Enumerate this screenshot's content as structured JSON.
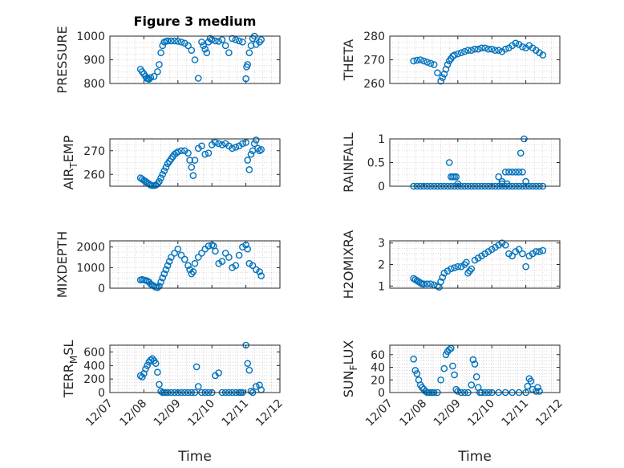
{
  "figure_title": "Figure 3 medium",
  "colors": {
    "marker": "#0072BD",
    "axes": "#262626",
    "grid": "#bdbdbd"
  },
  "chart_data": [
    {
      "type": "scatter",
      "title": "Figure 3 medium",
      "ylabel": "PRESSURE",
      "xlabel": "",
      "ylim": [
        800,
        1000
      ],
      "yticks": [
        800,
        900,
        1000
      ],
      "ytick_labels": [
        "800",
        "900",
        "1000"
      ],
      "xlim": [
        0,
        5
      ],
      "xticks": [
        0,
        1,
        2,
        3,
        4,
        5
      ],
      "xtick_labels": [],
      "grid": true,
      "series": [
        {
          "x": [
            0.9,
            0.95,
            1.0,
            1.05,
            1.08,
            1.12,
            1.15,
            1.2,
            1.3,
            1.4,
            1.45,
            1.5,
            1.55,
            1.6,
            1.65,
            1.7,
            1.8,
            1.9,
            2.0,
            2.1,
            2.2,
            2.3,
            2.4,
            2.5,
            2.6,
            2.7,
            2.75,
            2.8,
            2.85,
            2.9,
            2.95,
            3.0,
            3.1,
            3.2,
            3.3,
            3.4,
            3.5,
            3.6,
            3.7,
            3.8,
            3.9,
            4.0,
            4.02,
            4.05,
            4.1,
            4.15,
            4.2,
            4.25,
            4.3,
            4.4,
            4.45
          ],
          "y": [
            860,
            850,
            840,
            830,
            822,
            820,
            818,
            825,
            830,
            850,
            880,
            930,
            960,
            975,
            978,
            980,
            980,
            980,
            978,
            975,
            970,
            960,
            940,
            900,
            822,
            975,
            960,
            945,
            930,
            975,
            990,
            985,
            980,
            978,
            985,
            960,
            930,
            990,
            985,
            980,
            975,
            820,
            870,
            880,
            930,
            960,
            990,
            1000,
            965,
            975,
            985
          ]
        }
      ]
    },
    {
      "type": "scatter",
      "title": "",
      "ylabel": "THETA",
      "xlabel": "",
      "ylim": [
        260,
        280
      ],
      "yticks": [
        260,
        270,
        280
      ],
      "ytick_labels": [
        "260",
        "270",
        "280"
      ],
      "xlim": [
        0,
        5
      ],
      "xticks": [
        0,
        1,
        2,
        3,
        4,
        5
      ],
      "xtick_labels": [],
      "grid": true,
      "series": [
        {
          "x": [
            0.7,
            0.8,
            0.9,
            1.0,
            1.1,
            1.2,
            1.3,
            1.4,
            1.5,
            1.55,
            1.6,
            1.65,
            1.7,
            1.75,
            1.8,
            1.85,
            1.9,
            2.0,
            2.1,
            2.2,
            2.3,
            2.4,
            2.5,
            2.6,
            2.7,
            2.8,
            2.9,
            3.0,
            3.1,
            3.2,
            3.3,
            3.4,
            3.5,
            3.6,
            3.7,
            3.8,
            3.9,
            4.0,
            4.1,
            4.2,
            4.3,
            4.4,
            4.5
          ],
          "y": [
            269.5,
            269.8,
            270.0,
            269.5,
            269.0,
            268.5,
            268.0,
            264.5,
            261.0,
            262.5,
            264.0,
            266.0,
            268.0,
            269.5,
            270.5,
            271.5,
            272.0,
            272.5,
            273.0,
            273.5,
            274.0,
            274.0,
            274.5,
            274.5,
            275.0,
            275.0,
            274.5,
            274.5,
            274.0,
            274.0,
            273.5,
            274.5,
            275.0,
            276.0,
            277.0,
            276.5,
            275.5,
            275.0,
            276.0,
            275.0,
            274.0,
            273.0,
            272.0
          ]
        }
      ]
    },
    {
      "type": "scatter",
      "title": "",
      "ylabel": "AIR_TEMP",
      "xlabel": "",
      "ylim": [
        255,
        275
      ],
      "yticks": [
        260,
        270
      ],
      "ytick_labels": [
        "260",
        "270"
      ],
      "xlim": [
        0,
        5
      ],
      "xticks": [
        0,
        1,
        2,
        3,
        4,
        5
      ],
      "xtick_labels": [],
      "grid": true,
      "series": [
        {
          "x": [
            0.9,
            0.95,
            1.0,
            1.05,
            1.1,
            1.15,
            1.2,
            1.25,
            1.3,
            1.35,
            1.4,
            1.45,
            1.5,
            1.55,
            1.6,
            1.65,
            1.7,
            1.75,
            1.8,
            1.85,
            1.9,
            1.95,
            2.0,
            2.1,
            2.2,
            2.3,
            2.35,
            2.4,
            2.45,
            2.5,
            2.6,
            2.7,
            2.8,
            2.9,
            3.0,
            3.1,
            3.2,
            3.3,
            3.4,
            3.5,
            3.6,
            3.7,
            3.8,
            3.9,
            4.0,
            4.05,
            4.1,
            4.15,
            4.2,
            4.25,
            4.3,
            4.35,
            4.4,
            4.45
          ],
          "y": [
            258.5,
            258.0,
            257.5,
            257.0,
            256.5,
            256.0,
            255.5,
            255.3,
            255.3,
            255.5,
            256.0,
            257.0,
            258.5,
            260.0,
            261.5,
            263.0,
            264.5,
            265.5,
            266.5,
            267.5,
            268.5,
            269.0,
            269.5,
            270.0,
            270.0,
            269.0,
            266.0,
            263.0,
            259.5,
            266.0,
            271.0,
            272.0,
            268.5,
            269.0,
            272.5,
            273.5,
            273.0,
            272.5,
            273.0,
            272.0,
            271.0,
            271.5,
            272.0,
            273.0,
            273.5,
            266.0,
            262.0,
            268.5,
            270.0,
            273.0,
            274.5,
            271.0,
            270.0,
            270.5
          ]
        }
      ]
    },
    {
      "type": "scatter",
      "title": "",
      "ylabel": "RAINFALL",
      "xlabel": "",
      "ylim": [
        0,
        1
      ],
      "yticks": [
        0,
        0.5,
        1
      ],
      "ytick_labels": [
        "0",
        "0.5",
        "1"
      ],
      "xlim": [
        0,
        5
      ],
      "xticks": [
        0,
        1,
        2,
        3,
        4,
        5
      ],
      "xtick_labels": [],
      "grid": true,
      "series": [
        {
          "x": [
            0.7,
            0.8,
            0.9,
            1.0,
            1.1,
            1.2,
            1.3,
            1.4,
            1.5,
            1.6,
            1.7,
            1.8,
            1.9,
            2.0,
            2.1,
            2.2,
            2.3,
            2.4,
            2.5,
            2.6,
            2.7,
            2.8,
            2.9,
            3.0,
            3.1,
            3.2,
            3.3,
            3.4,
            3.5,
            3.6,
            3.7,
            3.8,
            3.9,
            4.0,
            4.1,
            4.2,
            4.3,
            4.4,
            4.5,
            1.75,
            1.8,
            1.85,
            1.9,
            1.95,
            2.0,
            3.2,
            3.3,
            3.4,
            3.5,
            3.6,
            3.7,
            3.8,
            3.9,
            3.85,
            3.95,
            3.3,
            3.45,
            4.0
          ],
          "y": [
            0,
            0,
            0,
            0,
            0,
            0,
            0,
            0,
            0,
            0,
            0,
            0,
            0,
            0,
            0,
            0,
            0,
            0,
            0,
            0,
            0,
            0,
            0,
            0,
            0,
            0,
            0,
            0,
            0,
            0,
            0,
            0,
            0,
            0,
            0,
            0,
            0,
            0,
            0,
            0.5,
            0.2,
            0.2,
            0.2,
            0.2,
            0.05,
            0.2,
            0.1,
            0.3,
            0.3,
            0.3,
            0.3,
            0.3,
            0.3,
            0.7,
            1.0,
            0.05,
            0.05,
            0.1
          ]
        }
      ]
    },
    {
      "type": "scatter",
      "title": "",
      "ylabel": "MIXDEPTH",
      "xlabel": "",
      "ylim": [
        0,
        2300
      ],
      "yticks": [
        0,
        1000,
        2000
      ],
      "ytick_labels": [
        "0",
        "1000",
        "2000"
      ],
      "xlim": [
        0,
        5
      ],
      "xticks": [
        0,
        1,
        2,
        3,
        4,
        5
      ],
      "xtick_labels": [],
      "grid": true,
      "series": [
        {
          "x": [
            0.9,
            0.95,
            1.0,
            1.05,
            1.1,
            1.15,
            1.2,
            1.25,
            1.3,
            1.35,
            1.4,
            1.45,
            1.5,
            1.55,
            1.6,
            1.65,
            1.7,
            1.75,
            1.8,
            1.9,
            2.0,
            2.1,
            2.2,
            2.3,
            2.35,
            2.4,
            2.45,
            2.5,
            2.6,
            2.7,
            2.8,
            2.9,
            3.0,
            3.05,
            3.1,
            3.2,
            3.3,
            3.4,
            3.5,
            3.6,
            3.7,
            3.8,
            3.9,
            4.0,
            4.05,
            4.1,
            4.2,
            4.3,
            4.4,
            4.45
          ],
          "y": [
            400,
            420,
            400,
            380,
            350,
            300,
            200,
            150,
            100,
            50,
            30,
            100,
            300,
            500,
            700,
            900,
            1100,
            1300,
            1500,
            1700,
            1900,
            1600,
            1400,
            1100,
            900,
            700,
            800,
            1200,
            1500,
            1700,
            1900,
            2050,
            2100,
            2050,
            1800,
            1200,
            1300,
            1700,
            1500,
            1000,
            1100,
            1600,
            2000,
            2100,
            1900,
            1200,
            1100,
            900,
            800,
            600
          ]
        }
      ]
    },
    {
      "type": "scatter",
      "title": "",
      "ylabel": "H2OMIXRA",
      "xlabel": "",
      "ylim": [
        0.9,
        3.1
      ],
      "yticks": [
        1,
        2,
        3
      ],
      "ytick_labels": [
        "1",
        "2",
        "3"
      ],
      "xlim": [
        0,
        5
      ],
      "xticks": [
        0,
        1,
        2,
        3,
        4,
        5
      ],
      "xtick_labels": [],
      "grid": true,
      "series": [
        {
          "x": [
            0.7,
            0.75,
            0.8,
            0.85,
            0.9,
            0.95,
            1.0,
            1.1,
            1.2,
            1.3,
            1.4,
            1.45,
            1.5,
            1.55,
            1.6,
            1.7,
            1.8,
            1.9,
            2.0,
            2.1,
            2.2,
            2.25,
            2.3,
            2.35,
            2.4,
            2.5,
            2.6,
            2.7,
            2.8,
            2.9,
            3.0,
            3.1,
            3.2,
            3.3,
            3.4,
            3.5,
            3.6,
            3.7,
            3.8,
            3.9,
            4.0,
            4.1,
            4.2,
            4.3,
            4.4,
            4.5
          ],
          "y": [
            1.35,
            1.3,
            1.25,
            1.2,
            1.15,
            1.1,
            1.1,
            1.1,
            1.1,
            1.05,
            1.0,
            0.95,
            1.2,
            1.4,
            1.6,
            1.7,
            1.8,
            1.85,
            1.9,
            1.9,
            2.0,
            2.1,
            1.6,
            1.7,
            1.8,
            2.2,
            2.3,
            2.4,
            2.5,
            2.6,
            2.7,
            2.8,
            2.9,
            3.0,
            2.9,
            2.5,
            2.4,
            2.6,
            2.7,
            2.5,
            1.9,
            2.4,
            2.5,
            2.6,
            2.6,
            2.65
          ]
        }
      ]
    },
    {
      "type": "scatter",
      "title": "",
      "ylabel": "TERR_MSL",
      "xlabel": "Time",
      "ylim": [
        0,
        700
      ],
      "yticks": [
        0,
        200,
        400,
        600
      ],
      "ytick_labels": [
        "0",
        "200",
        "400",
        "600"
      ],
      "xlim": [
        0,
        5
      ],
      "xticks": [
        0,
        1,
        2,
        3,
        4,
        5
      ],
      "xtick_labels": [
        "12/07",
        "12/08",
        "12/09",
        "12/10",
        "12/11",
        "12/12"
      ],
      "grid": true,
      "series": [
        {
          "x": [
            0.9,
            0.95,
            1.0,
            1.05,
            1.1,
            1.15,
            1.2,
            1.25,
            1.3,
            1.35,
            1.4,
            1.45,
            1.5,
            1.55,
            1.6,
            1.65,
            1.7,
            1.8,
            1.9,
            2.0,
            2.1,
            2.2,
            2.3,
            2.4,
            2.5,
            2.55,
            2.6,
            2.7,
            2.8,
            2.9,
            3.0,
            3.1,
            3.2,
            3.3,
            3.4,
            3.5,
            3.6,
            3.7,
            3.8,
            3.85,
            3.9,
            4.0,
            4.05,
            4.1,
            4.15,
            4.2,
            4.3,
            4.4,
            4.45
          ],
          "y": [
            250,
            230,
            280,
            350,
            400,
            450,
            480,
            500,
            470,
            430,
            300,
            120,
            20,
            0,
            0,
            0,
            0,
            0,
            0,
            0,
            0,
            0,
            0,
            0,
            0,
            380,
            90,
            0,
            0,
            0,
            0,
            250,
            290,
            0,
            0,
            0,
            0,
            0,
            0,
            0,
            0,
            700,
            430,
            330,
            20,
            0,
            90,
            110,
            40
          ]
        }
      ]
    },
    {
      "type": "scatter",
      "title": "",
      "ylabel": "SUN_FLUX",
      "xlabel": "Time",
      "ylim": [
        0,
        75
      ],
      "yticks": [
        0,
        20,
        40,
        60
      ],
      "ytick_labels": [
        "0",
        "20",
        "40",
        "60"
      ],
      "xlim": [
        0,
        5
      ],
      "xticks": [
        0,
        1,
        2,
        3,
        4,
        5
      ],
      "xtick_labels": [
        "12/07",
        "12/08",
        "12/09",
        "12/10",
        "12/11",
        "12/12"
      ],
      "grid": true,
      "series": [
        {
          "x": [
            0.7,
            0.75,
            0.8,
            0.85,
            0.9,
            0.95,
            1.0,
            1.05,
            1.1,
            1.15,
            1.2,
            1.25,
            1.3,
            1.4,
            1.5,
            1.6,
            1.65,
            1.7,
            1.75,
            1.8,
            1.85,
            1.9,
            1.95,
            2.0,
            2.1,
            2.2,
            2.3,
            2.4,
            2.45,
            2.5,
            2.55,
            2.6,
            2.65,
            2.7,
            2.8,
            2.9,
            3.0,
            3.2,
            3.4,
            3.6,
            3.8,
            4.0,
            4.05,
            4.1,
            4.15,
            4.2,
            4.3,
            4.35,
            4.4
          ],
          "y": [
            53,
            35,
            30,
            20,
            12,
            8,
            5,
            2,
            0,
            0,
            0,
            0,
            0,
            0,
            20,
            38,
            60,
            65,
            68,
            70,
            42,
            28,
            5,
            2,
            0,
            0,
            0,
            12,
            52,
            45,
            25,
            8,
            0,
            0,
            0,
            0,
            0,
            0,
            0,
            0,
            0,
            0,
            10,
            22,
            18,
            5,
            2,
            8,
            2
          ]
        }
      ]
    }
  ]
}
